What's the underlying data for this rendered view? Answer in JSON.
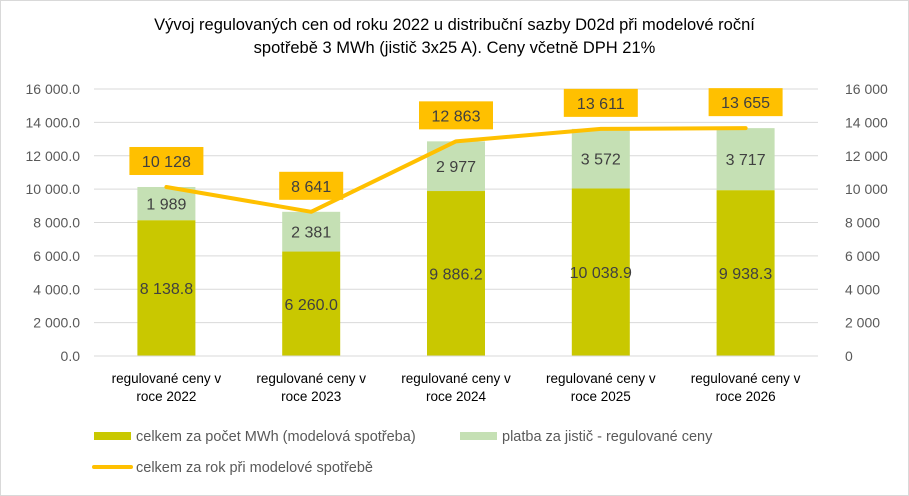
{
  "chart_data": {
    "type": "bar+line",
    "title_lines": [
      "Vývoj regulovaných cen od roku 2022 u distribuční sazby D02d při modelové roční",
      "spotřebě 3 MWh (jistič 3x25 A). Ceny včetně DPH 21%"
    ],
    "categories": [
      [
        "regulované ceny v",
        "roce 2022"
      ],
      [
        "regulované ceny v",
        "roce 2023"
      ],
      [
        "regulované ceny v",
        "roce 2024"
      ],
      [
        "regulované ceny v",
        "roce 2025"
      ],
      [
        "regulované ceny v",
        "roce 2026"
      ]
    ],
    "series": [
      {
        "name": "celkem za počet MWh (modelová spotřeba)",
        "kind": "stacked-bar",
        "color": "#C9C800",
        "values": [
          8138.8,
          6260.0,
          9886.2,
          10038.9,
          9938.3
        ],
        "labels": [
          "8 138.8",
          "6 260.0",
          "9 886.2",
          "10 038.9",
          "9 938.3"
        ]
      },
      {
        "name": "platba za jistič - regulované ceny",
        "kind": "stacked-bar",
        "color": "#C5E0B4",
        "values": [
          1989,
          2381,
          2977,
          3572,
          3717
        ],
        "labels": [
          "1 989",
          "2 381",
          "2 977",
          "3 572",
          "3 717"
        ]
      },
      {
        "name": "celkem za rok při modelové spotřebě",
        "kind": "line",
        "axis": "right",
        "color": "#FFC000",
        "values": [
          10128,
          8641,
          12863,
          13611,
          13655
        ],
        "labels": [
          "10 128",
          "8 641",
          "12 863",
          "13 611",
          "13 655"
        ]
      }
    ],
    "left_axis": {
      "range": [
        0,
        16000
      ],
      "ticks": [
        "0.0",
        "2 000.0",
        "4 000.0",
        "6 000.0",
        "8 000.0",
        "10 000.0",
        "12 000.0",
        "14 000.0",
        "16 000.0"
      ]
    },
    "right_axis": {
      "range": [
        0,
        16000
      ],
      "ticks": [
        "0",
        "2 000",
        "4 000",
        "6 000",
        "8 000",
        "10 000",
        "12 000",
        "14 000",
        "16 000"
      ]
    },
    "grid": true,
    "legend_position": "bottom"
  }
}
